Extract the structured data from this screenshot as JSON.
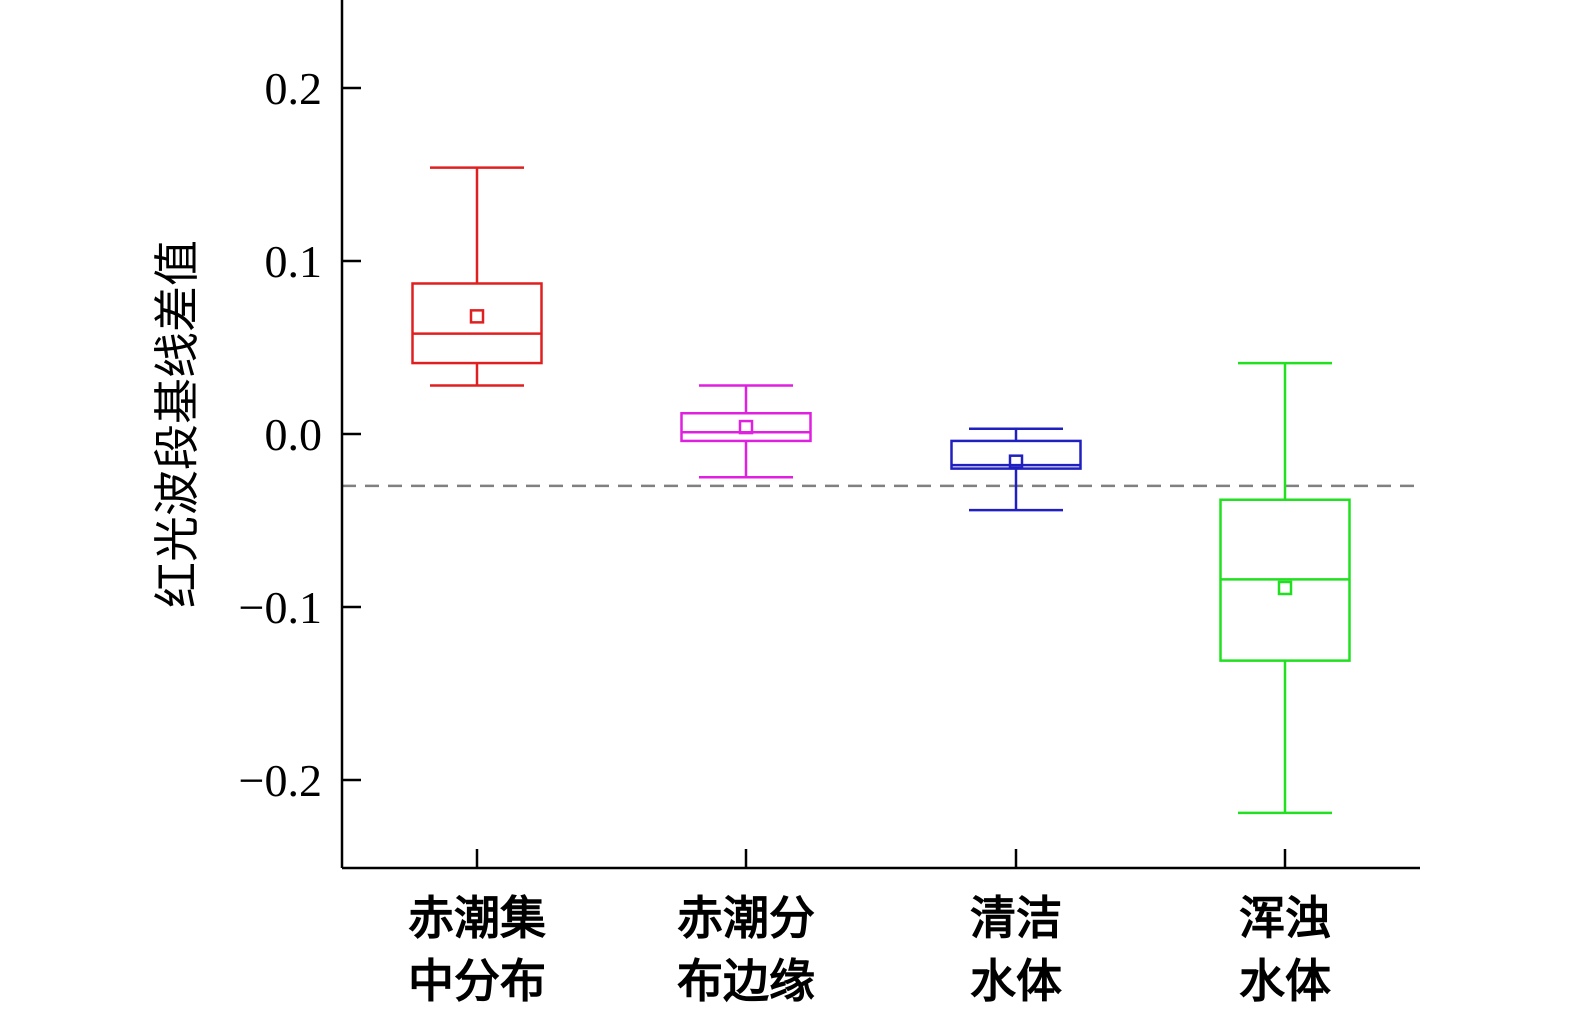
{
  "chart_data": {
    "type": "box",
    "title": "",
    "xlabel": "",
    "ylabel": "红光波段基线差值",
    "ylim": [
      -0.25,
      0.25
    ],
    "yticks": [
      {
        "value": 0.2,
        "label": "0.2"
      },
      {
        "value": 0.1,
        "label": "0.1"
      },
      {
        "value": 0.0,
        "label": "0.0"
      },
      {
        "value": -0.1,
        "label": "−0.1"
      },
      {
        "value": -0.2,
        "label": "−0.2"
      }
    ],
    "reference_line": {
      "value": -0.03,
      "style": "dashed",
      "color": "#808080"
    },
    "grid": false,
    "legend": "none",
    "categories": [
      {
        "lines": [
          "赤潮集",
          "中分布"
        ],
        "color": "#e02020",
        "whisker_low": 0.028,
        "q1": 0.041,
        "median": 0.058,
        "q3": 0.087,
        "whisker_high": 0.154,
        "mean": 0.068
      },
      {
        "lines": [
          "赤潮分",
          "布边缘"
        ],
        "color": "#e020e0",
        "whisker_low": -0.025,
        "q1": -0.004,
        "median": 0.001,
        "q3": 0.012,
        "whisker_high": 0.028,
        "mean": 0.004
      },
      {
        "lines": [
          "清洁",
          "水体"
        ],
        "color": "#2020c0",
        "whisker_low": -0.044,
        "q1": -0.02,
        "median": -0.018,
        "q3": -0.004,
        "whisker_high": 0.003,
        "mean": -0.016
      },
      {
        "lines": [
          "浑浊",
          "水体"
        ],
        "color": "#20e020",
        "whisker_low": -0.219,
        "q1": -0.131,
        "median": -0.084,
        "q3": -0.038,
        "whisker_high": 0.041,
        "mean": -0.089
      }
    ]
  }
}
